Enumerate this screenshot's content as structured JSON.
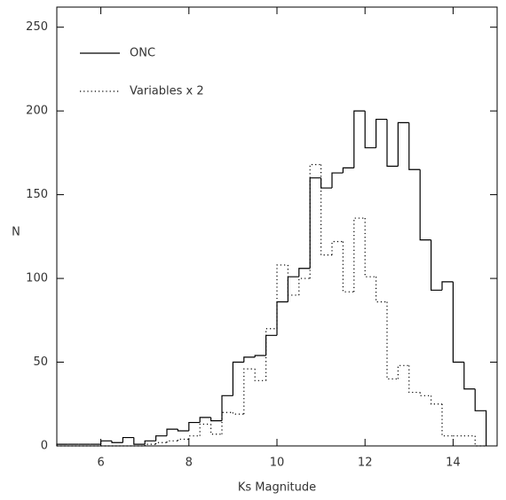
{
  "chart_data": {
    "type": "histogram",
    "xlabel": "Ks Magnitude",
    "ylabel": "N",
    "bins": [
      5,
      5.25,
      5.5,
      5.75,
      6,
      6.25,
      6.5,
      6.75,
      7,
      7.25,
      7.5,
      7.75,
      8,
      8.25,
      8.5,
      8.75,
      9,
      9.25,
      9.5,
      9.75,
      10,
      10.25,
      10.5,
      10.75,
      11,
      11.25,
      11.5,
      11.75,
      12,
      12.25,
      12.5,
      12.75,
      13,
      13.25,
      13.5,
      13.75,
      14,
      14.25,
      14.5,
      14.75
    ],
    "series": [
      {
        "name": "ONC",
        "color": "#000000",
        "style": "solid",
        "values": [
          1,
          1,
          1,
          1,
          3,
          2,
          5,
          1,
          3,
          6,
          10,
          9,
          14,
          17,
          15,
          30,
          50,
          53,
          54,
          66,
          86,
          101,
          106,
          160,
          154,
          163,
          166,
          200,
          178,
          195,
          167,
          193,
          165,
          123,
          93,
          98,
          50,
          34,
          21
        ]
      },
      {
        "name": "Variables x 2",
        "color": "#000000",
        "style": "dotted",
        "values": [
          0,
          0,
          0,
          0,
          0,
          0,
          0,
          0,
          1,
          2,
          3,
          4,
          6,
          13,
          7,
          20,
          19,
          46,
          39,
          70,
          108,
          90,
          100,
          168,
          114,
          122,
          92,
          136,
          101,
          86,
          40,
          48,
          32,
          30,
          25,
          6,
          6,
          6,
          0
        ]
      }
    ],
    "xlim": [
      5,
      15
    ],
    "ylim": [
      0,
      262
    ],
    "xticks": [
      6,
      8,
      10,
      12,
      14
    ],
    "yticks": [
      0,
      50,
      100,
      150,
      200,
      250
    ]
  }
}
